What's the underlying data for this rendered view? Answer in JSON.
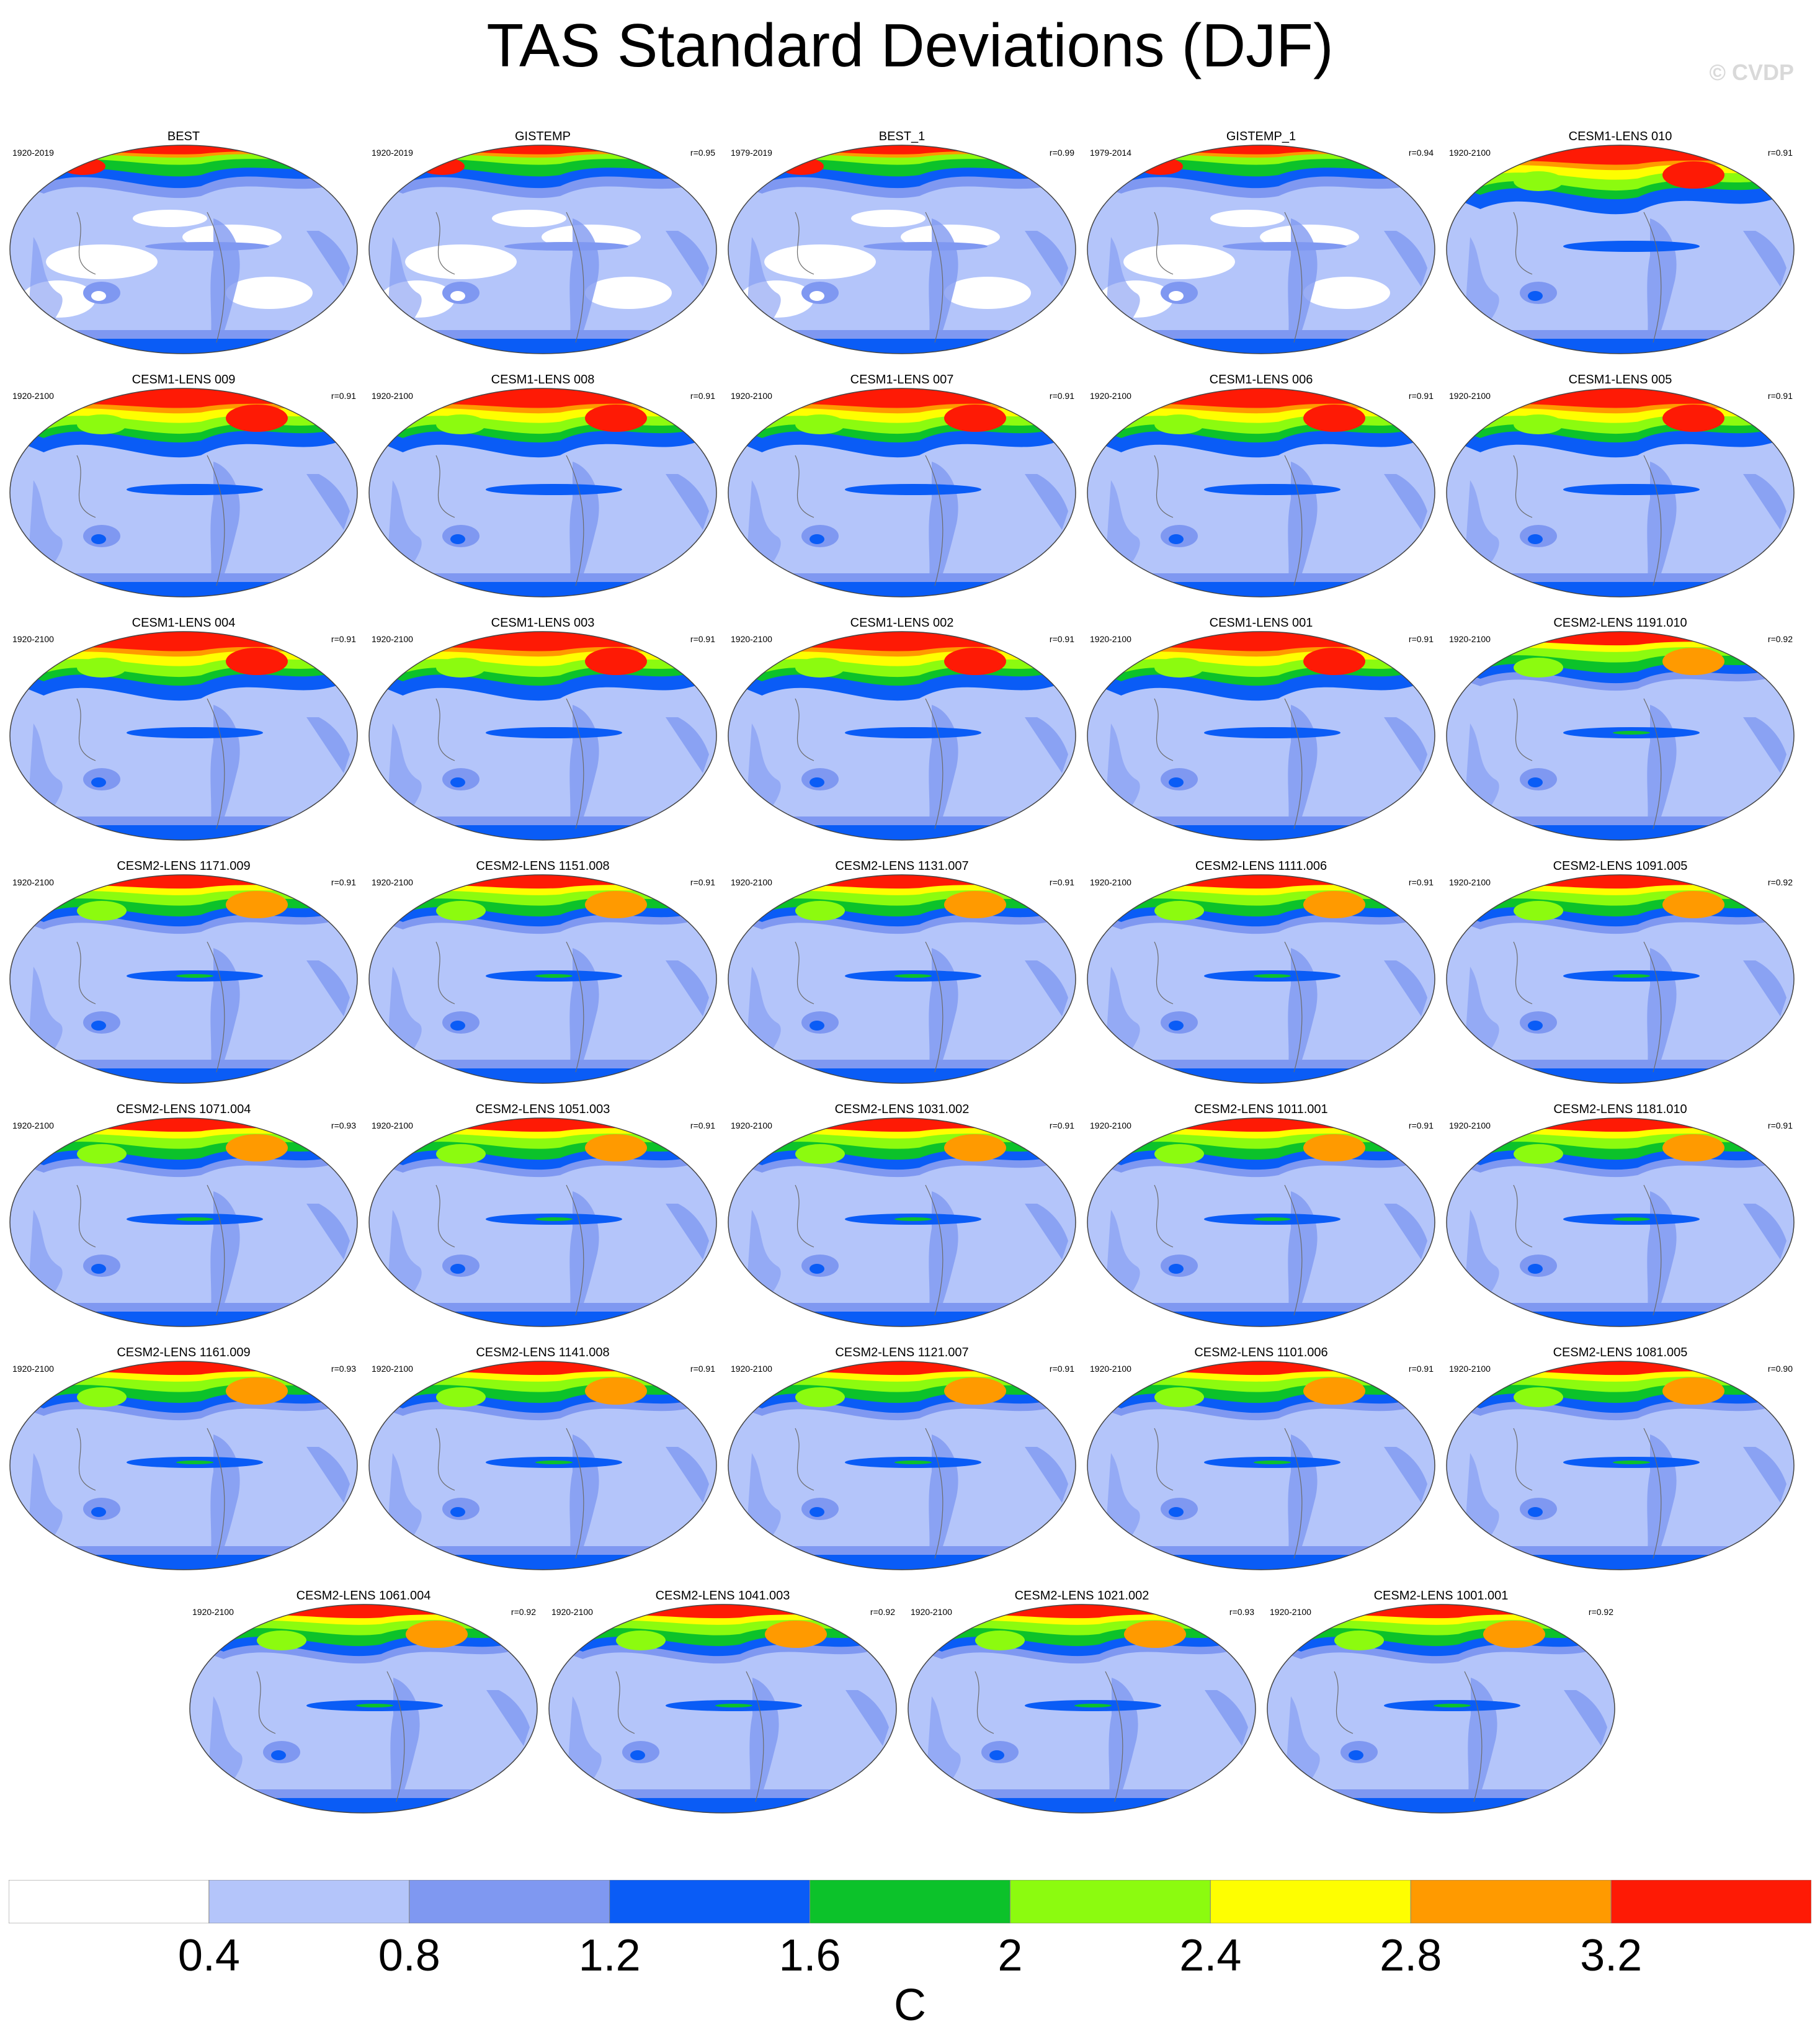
{
  "title": "TAS Standard Deviations (DJF)",
  "watermark": "© CVDP",
  "chart_data": {
    "type": "heatmap",
    "title": "TAS Standard Deviations (DJF)",
    "colorbar": {
      "units": "C",
      "levels": [
        0.4,
        0.8,
        1.2,
        1.6,
        2,
        2.4,
        2.8,
        3.2
      ],
      "tick_labels": [
        "0.4",
        "0.8",
        "1.2",
        "1.6",
        "2",
        "2.4",
        "2.8",
        "3.2"
      ],
      "colors": [
        "#ffffff",
        "#b4c5fa",
        "#7f98f1",
        "#0a5cf6",
        "#0cc22a",
        "#8cfb0f",
        "#fefe01",
        "#ff9a00",
        "#fe1a05"
      ]
    },
    "panels": [
      {
        "name": "BEST",
        "period": "1920-2019",
        "r": ""
      },
      {
        "name": "GISTEMP",
        "period": "1920-2019",
        "r": "r=0.95"
      },
      {
        "name": "BEST_1",
        "period": "1979-2019",
        "r": "r=0.99"
      },
      {
        "name": "GISTEMP_1",
        "period": "1979-2014",
        "r": "r=0.94"
      },
      {
        "name": "CESM1-LENS 010",
        "period": "1920-2100",
        "r": "r=0.91"
      },
      {
        "name": "CESM1-LENS 009",
        "period": "1920-2100",
        "r": "r=0.91"
      },
      {
        "name": "CESM1-LENS 008",
        "period": "1920-2100",
        "r": "r=0.91"
      },
      {
        "name": "CESM1-LENS 007",
        "period": "1920-2100",
        "r": "r=0.91"
      },
      {
        "name": "CESM1-LENS 006",
        "period": "1920-2100",
        "r": "r=0.91"
      },
      {
        "name": "CESM1-LENS 005",
        "period": "1920-2100",
        "r": "r=0.91"
      },
      {
        "name": "CESM1-LENS 004",
        "period": "1920-2100",
        "r": "r=0.91"
      },
      {
        "name": "CESM1-LENS 003",
        "period": "1920-2100",
        "r": "r=0.91"
      },
      {
        "name": "CESM1-LENS 002",
        "period": "1920-2100",
        "r": "r=0.91"
      },
      {
        "name": "CESM1-LENS 001",
        "period": "1920-2100",
        "r": "r=0.91"
      },
      {
        "name": "CESM2-LENS 1191.010",
        "period": "1920-2100",
        "r": "r=0.92"
      },
      {
        "name": "CESM2-LENS 1171.009",
        "period": "1920-2100",
        "r": "r=0.91"
      },
      {
        "name": "CESM2-LENS 1151.008",
        "period": "1920-2100",
        "r": "r=0.91"
      },
      {
        "name": "CESM2-LENS 1131.007",
        "period": "1920-2100",
        "r": "r=0.91"
      },
      {
        "name": "CESM2-LENS 1111.006",
        "period": "1920-2100",
        "r": "r=0.91"
      },
      {
        "name": "CESM2-LENS 1091.005",
        "period": "1920-2100",
        "r": "r=0.92"
      },
      {
        "name": "CESM2-LENS 1071.004",
        "period": "1920-2100",
        "r": "r=0.93"
      },
      {
        "name": "CESM2-LENS 1051.003",
        "period": "1920-2100",
        "r": "r=0.91"
      },
      {
        "name": "CESM2-LENS 1031.002",
        "period": "1920-2100",
        "r": "r=0.91"
      },
      {
        "name": "CESM2-LENS 1011.001",
        "period": "1920-2100",
        "r": "r=0.91"
      },
      {
        "name": "CESM2-LENS 1181.010",
        "period": "1920-2100",
        "r": "r=0.91"
      },
      {
        "name": "CESM2-LENS 1161.009",
        "period": "1920-2100",
        "r": "r=0.93"
      },
      {
        "name": "CESM2-LENS 1141.008",
        "period": "1920-2100",
        "r": "r=0.91"
      },
      {
        "name": "CESM2-LENS 1121.007",
        "period": "1920-2100",
        "r": "r=0.91"
      },
      {
        "name": "CESM2-LENS 1101.006",
        "period": "1920-2100",
        "r": "r=0.91"
      },
      {
        "name": "CESM2-LENS 1081.005",
        "period": "1920-2100",
        "r": "r=0.90"
      },
      {
        "name": "CESM2-LENS 1061.004",
        "period": "1920-2100",
        "r": "r=0.92"
      },
      {
        "name": "CESM2-LENS 1041.003",
        "period": "1920-2100",
        "r": "r=0.92"
      },
      {
        "name": "CESM2-LENS 1021.002",
        "period": "1920-2100",
        "r": "r=0.93"
      },
      {
        "name": "CESM2-LENS 1001.001",
        "period": "1920-2100",
        "r": "r=0.92"
      }
    ]
  }
}
